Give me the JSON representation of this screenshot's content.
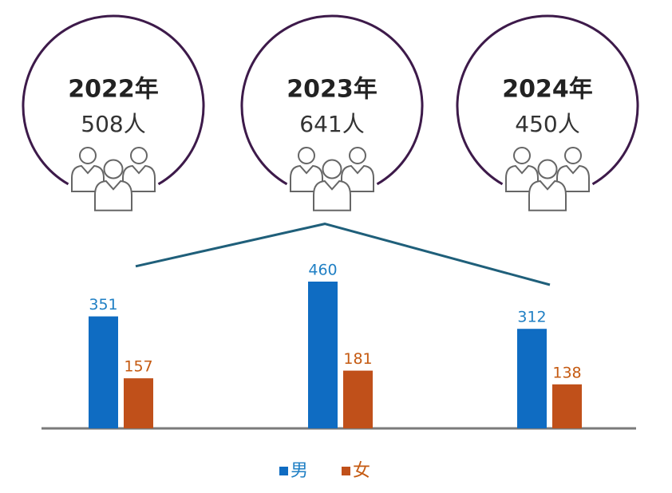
{
  "chart_data": {
    "type": "bar",
    "categories": [
      "2022年",
      "2023年",
      "2024年"
    ],
    "totals": {
      "values": [
        508,
        641,
        450
      ],
      "value_labels": [
        "508人",
        "641人",
        "450人"
      ],
      "color": "#1f5f7a"
    },
    "series": [
      {
        "name": "男",
        "color": "#0f6cc2",
        "label_color": "#1f7fc4",
        "values": [
          351,
          460,
          312
        ]
      },
      {
        "name": "女",
        "color": "#c0501a",
        "label_color": "#c55a11",
        "values": [
          157,
          181,
          138
        ]
      }
    ],
    "ylim": [
      0,
      500
    ],
    "ring_color": "#3d1a4a"
  }
}
